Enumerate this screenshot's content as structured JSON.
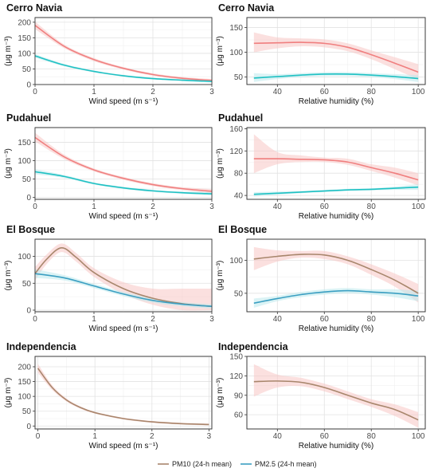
{
  "legend": [
    {
      "label": "PM10 (24-h mean)",
      "color": "#a8866c"
    },
    {
      "label": "PM2.5 (24-h mean)",
      "color": "#3b9fc2"
    }
  ],
  "chart_data": [
    {
      "type": "line",
      "title": "Cerro Navia",
      "xlabel": "Wind speed (m s⁻¹)",
      "ylabel": "(μg m⁻³)",
      "xlim": [
        0,
        3
      ],
      "ylim": [
        0,
        215
      ],
      "xticks": [
        0,
        1,
        2,
        3
      ],
      "yticks": [
        0,
        50,
        100,
        150,
        200
      ],
      "series": [
        {
          "color": "#f07f7f",
          "band_color": "#f8c6c4",
          "x": [
            0,
            0.5,
            1,
            1.5,
            2,
            2.5,
            3
          ],
          "y": [
            190,
            122,
            80,
            52,
            32,
            20,
            13
          ],
          "lo": [
            178,
            116,
            75,
            48,
            28,
            16,
            8
          ],
          "hi": [
            202,
            128,
            85,
            56,
            36,
            24,
            18
          ]
        },
        {
          "color": "#1fc1c3",
          "band_color": "#bde9ec",
          "x": [
            0,
            0.5,
            1,
            1.5,
            2,
            2.5,
            3
          ],
          "y": [
            92,
            62,
            42,
            28,
            19,
            14,
            10
          ],
          "lo": [
            86,
            58,
            39,
            25,
            16,
            11,
            6
          ],
          "hi": [
            98,
            66,
            45,
            31,
            22,
            17,
            14
          ]
        }
      ]
    },
    {
      "type": "line",
      "title": "Cerro Navia",
      "xlabel": "Relative humidity (%)",
      "ylabel": "(μg m⁻³)",
      "xlim": [
        27,
        103
      ],
      "ylim": [
        35,
        170
      ],
      "xticks": [
        40,
        60,
        80,
        100
      ],
      "yticks": [
        50,
        100,
        150
      ],
      "series": [
        {
          "color": "#f07f7f",
          "band_color": "#f8c6c4",
          "x": [
            30,
            40,
            50,
            60,
            70,
            80,
            90,
            100
          ],
          "y": [
            118,
            119,
            120,
            118,
            110,
            95,
            78,
            60
          ],
          "lo": [
            100,
            108,
            112,
            110,
            102,
            86,
            66,
            45
          ],
          "hi": [
            140,
            130,
            128,
            126,
            118,
            104,
            90,
            76
          ]
        },
        {
          "color": "#1fc1c3",
          "band_color": "#bde9ec",
          "x": [
            30,
            40,
            50,
            60,
            70,
            80,
            90,
            100
          ],
          "y": [
            48,
            51,
            54,
            56,
            56,
            54,
            51,
            47
          ],
          "lo": [
            40,
            46,
            50,
            52,
            52,
            50,
            46,
            40
          ],
          "hi": [
            58,
            56,
            58,
            60,
            60,
            58,
            56,
            54
          ]
        }
      ]
    },
    {
      "type": "line",
      "title": "Pudahuel",
      "xlabel": "Wind speed (m s⁻¹)",
      "ylabel": "(μg m⁻³)",
      "xlim": [
        0,
        3
      ],
      "ylim": [
        -5,
        190
      ],
      "xticks": [
        0,
        1,
        2,
        3
      ],
      "yticks": [
        0,
        50,
        100,
        150
      ],
      "series": [
        {
          "color": "#f07f7f",
          "band_color": "#f8c6c4",
          "x": [
            0,
            0.5,
            1,
            1.5,
            2,
            2.5,
            3
          ],
          "y": [
            163,
            110,
            75,
            52,
            35,
            24,
            17
          ],
          "lo": [
            152,
            104,
            71,
            48,
            31,
            20,
            11
          ],
          "hi": [
            176,
            116,
            79,
            56,
            39,
            28,
            23
          ]
        },
        {
          "color": "#1fc1c3",
          "band_color": "#bde9ec",
          "x": [
            0,
            0.5,
            1,
            1.5,
            2,
            2.5,
            3
          ],
          "y": [
            70,
            57,
            38,
            26,
            18,
            13,
            10
          ],
          "lo": [
            63,
            53,
            35,
            23,
            15,
            10,
            5
          ],
          "hi": [
            77,
            61,
            41,
            29,
            21,
            16,
            15
          ]
        }
      ]
    },
    {
      "type": "line",
      "title": "Pudahuel",
      "xlabel": "Relative humidity (%)",
      "ylabel": "(μg m⁻³)",
      "xlim": [
        27,
        103
      ],
      "ylim": [
        33,
        162
      ],
      "xticks": [
        40,
        60,
        80,
        100
      ],
      "yticks": [
        40,
        80,
        120,
        160
      ],
      "series": [
        {
          "color": "#f07f7f",
          "band_color": "#f8c6c4",
          "x": [
            30,
            40,
            50,
            60,
            70,
            80,
            90,
            100
          ],
          "y": [
            106,
            106,
            105,
            104,
            100,
            90,
            80,
            68
          ],
          "lo": [
            80,
            96,
            100,
            100,
            95,
            84,
            72,
            58
          ],
          "hi": [
            150,
            118,
            112,
            108,
            106,
            96,
            90,
            80
          ]
        },
        {
          "color": "#1fc1c3",
          "band_color": "#bde9ec",
          "x": [
            30,
            40,
            50,
            60,
            70,
            80,
            90,
            100
          ],
          "y": [
            42,
            44,
            46,
            48,
            50,
            51,
            53,
            55
          ],
          "lo": [
            38,
            41,
            44,
            46,
            48,
            49,
            50,
            50
          ],
          "hi": [
            46,
            47,
            48,
            50,
            52,
            53,
            56,
            60
          ]
        }
      ]
    },
    {
      "type": "line",
      "title": "El Bosque",
      "xlabel": "Wind speed (m s⁻¹)",
      "ylabel": "(μg m⁻³)",
      "xlim": [
        0,
        3
      ],
      "ylim": [
        -3,
        132
      ],
      "xticks": [
        0,
        1,
        2,
        3
      ],
      "yticks": [
        0,
        50,
        100
      ],
      "series": [
        {
          "color": "#a8866c",
          "band_color": "#f8c6c4",
          "x": [
            0,
            0.2,
            0.45,
            0.7,
            1,
            1.5,
            2,
            2.5,
            3
          ],
          "y": [
            68,
            95,
            116,
            98,
            70,
            40,
            22,
            12,
            7
          ],
          "lo": [
            55,
            86,
            108,
            90,
            62,
            30,
            10,
            0,
            0
          ],
          "hi": [
            80,
            104,
            124,
            106,
            78,
            52,
            40,
            40,
            40
          ]
        },
        {
          "color": "#3b9fc2",
          "band_color": "#bde9ec",
          "x": [
            0,
            0.5,
            1,
            1.5,
            2,
            2.5,
            3
          ],
          "y": [
            68,
            60,
            45,
            30,
            18,
            11,
            7
          ],
          "lo": [
            60,
            55,
            41,
            26,
            14,
            7,
            3
          ],
          "hi": [
            76,
            65,
            49,
            34,
            22,
            15,
            11
          ]
        }
      ]
    },
    {
      "type": "line",
      "title": "El Bosque",
      "xlabel": "Relative humidity (%)",
      "ylabel": "(μg m⁻³)",
      "xlim": [
        27,
        103
      ],
      "ylim": [
        22,
        132
      ],
      "xticks": [
        40,
        60,
        80,
        100
      ],
      "yticks": [
        50,
        100
      ],
      "series": [
        {
          "color": "#a8866c",
          "band_color": "#f8c6c4",
          "x": [
            30,
            40,
            50,
            60,
            70,
            80,
            90,
            100
          ],
          "y": [
            102,
            106,
            109,
            108,
            100,
            86,
            70,
            50
          ],
          "lo": [
            85,
            98,
            104,
            102,
            94,
            78,
            60,
            36
          ],
          "hi": [
            120,
            115,
            114,
            114,
            106,
            94,
            80,
            64
          ]
        },
        {
          "color": "#3b9fc2",
          "band_color": "#bde9ec",
          "x": [
            30,
            40,
            50,
            60,
            70,
            80,
            90,
            100
          ],
          "y": [
            35,
            42,
            48,
            52,
            54,
            52,
            50,
            46
          ],
          "lo": [
            28,
            38,
            44,
            48,
            50,
            48,
            44,
            38
          ],
          "hi": [
            42,
            46,
            52,
            56,
            58,
            56,
            56,
            54
          ]
        }
      ]
    },
    {
      "type": "line",
      "title": "Independencia",
      "xlabel": "Wind speed (m s⁻¹)",
      "ylabel": "(μg m⁻³)",
      "xlim": [
        -0.05,
        3.05
      ],
      "ylim": [
        -10,
        235
      ],
      "xticks": [
        0,
        1,
        2,
        3
      ],
      "yticks": [
        0,
        50,
        100,
        150,
        200
      ],
      "series": [
        {
          "color": "#a8866c",
          "band_color": "#f8c6c4",
          "x": [
            0,
            0.25,
            0.5,
            0.75,
            1,
            1.5,
            2,
            2.5,
            3
          ],
          "y": [
            195,
            130,
            88,
            62,
            45,
            25,
            14,
            8,
            5
          ],
          "lo": [
            180,
            122,
            83,
            58,
            42,
            22,
            11,
            5,
            2
          ],
          "hi": [
            210,
            138,
            93,
            66,
            48,
            28,
            17,
            11,
            8
          ]
        }
      ]
    },
    {
      "type": "line",
      "title": "Independencia",
      "xlabel": "Relative humidity (%)",
      "ylabel": "(μg m⁻³)",
      "xlim": [
        27,
        103
      ],
      "ylim": [
        38,
        150
      ],
      "xticks": [
        40,
        60,
        80,
        100
      ],
      "yticks": [
        60,
        90,
        120,
        150
      ],
      "series": [
        {
          "color": "#a8866c",
          "band_color": "#f8c6c4",
          "x": [
            30,
            40,
            50,
            60,
            70,
            80,
            90,
            100
          ],
          "y": [
            111,
            112,
            110,
            102,
            90,
            78,
            68,
            52
          ],
          "lo": [
            88,
            102,
            104,
            96,
            84,
            72,
            58,
            40
          ],
          "hi": [
            138,
            122,
            117,
            108,
            96,
            84,
            76,
            64
          ]
        }
      ]
    }
  ]
}
